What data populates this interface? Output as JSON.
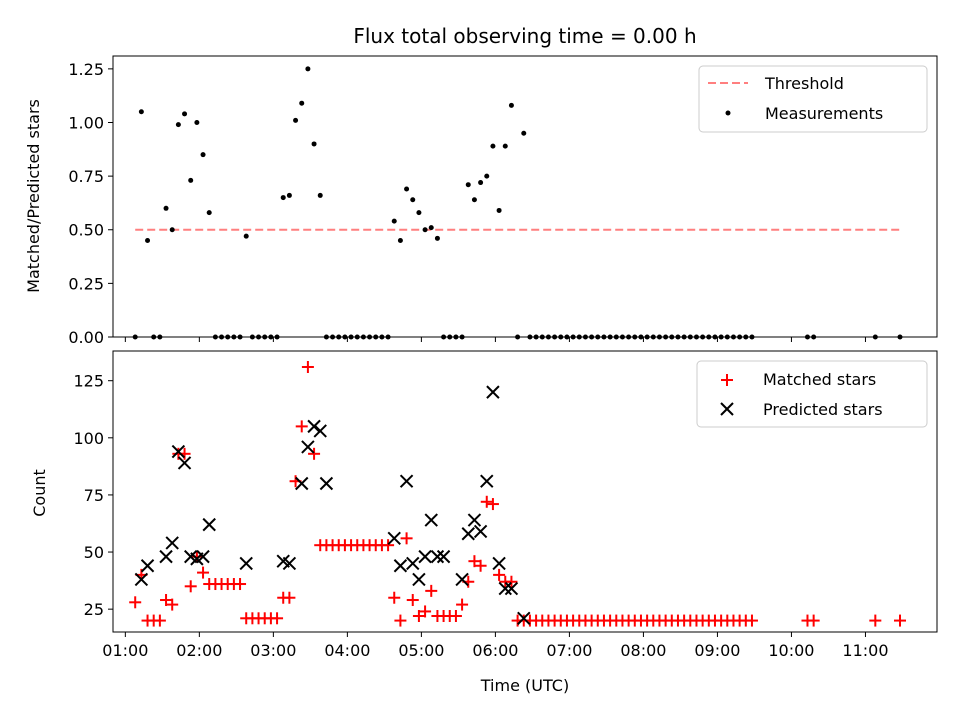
{
  "chart_data": [
    {
      "type": "scatter",
      "title": "Flux total observing time = 0.00 h",
      "xlabel": "",
      "ylabel": "Matched/Predicted stars",
      "xlim": [
        "00:50",
        "11:58"
      ],
      "ylim": [
        0,
        1.31
      ],
      "x_ticks": [
        "01:00",
        "02:00",
        "03:00",
        "04:00",
        "05:00",
        "06:00",
        "07:00",
        "08:00",
        "09:00",
        "10:00",
        "11:00"
      ],
      "y_ticks": [
        "0.00",
        "0.25",
        "0.50",
        "0.75",
        "1.00",
        "1.25"
      ],
      "legend_position": "top-right",
      "series": [
        {
          "name": "Threshold",
          "kind": "line",
          "style": "dashed",
          "color": "#ff7f7f",
          "x": [
            "01:08",
            "11:28"
          ],
          "y": [
            0.5,
            0.5
          ]
        },
        {
          "name": "Measurements",
          "kind": "scatter",
          "marker": "dot",
          "color": "#000000",
          "x": [
            "01:08",
            "01:13",
            "01:18",
            "01:23",
            "01:28",
            "01:33",
            "01:38",
            "01:43",
            "01:48",
            "01:53",
            "01:58",
            "02:03",
            "02:08",
            "02:13",
            "02:18",
            "02:23",
            "02:28",
            "02:33",
            "02:38",
            "02:43",
            "02:48",
            "02:53",
            "02:58",
            "03:03",
            "03:08",
            "03:13",
            "03:18",
            "03:23",
            "03:28",
            "03:33",
            "03:38",
            "03:43",
            "03:48",
            "03:53",
            "03:58",
            "04:03",
            "04:08",
            "04:13",
            "04:18",
            "04:23",
            "04:28",
            "04:33",
            "04:38",
            "04:43",
            "04:48",
            "04:53",
            "04:58",
            "05:03",
            "05:08",
            "05:13",
            "05:18",
            "05:23",
            "05:28",
            "05:33",
            "05:38",
            "05:43",
            "05:48",
            "05:53",
            "05:58",
            "06:03",
            "06:08",
            "06:13",
            "06:18",
            "06:23",
            "06:28",
            "06:33",
            "06:38",
            "06:43",
            "06:48",
            "06:53",
            "06:58",
            "07:03",
            "07:08",
            "07:13",
            "07:18",
            "07:23",
            "07:28",
            "07:33",
            "07:38",
            "07:43",
            "07:48",
            "07:53",
            "07:58",
            "08:03",
            "08:08",
            "08:13",
            "08:18",
            "08:23",
            "08:28",
            "08:33",
            "08:38",
            "08:43",
            "08:48",
            "08:53",
            "08:58",
            "09:03",
            "09:08",
            "09:13",
            "09:18",
            "09:23",
            "09:28",
            "10:13",
            "10:18",
            "11:08",
            "11:28"
          ],
          "y": [
            0,
            1.05,
            0.45,
            0,
            0,
            0.6,
            0.5,
            0.99,
            1.04,
            0.73,
            1.0,
            0.85,
            0.58,
            0,
            0,
            0,
            0,
            0,
            0.47,
            0,
            0,
            0,
            0,
            0,
            0.65,
            0.66,
            1.01,
            1.09,
            1.25,
            0.9,
            0.66,
            0,
            0,
            0,
            0,
            0,
            0,
            0,
            0,
            0,
            0,
            0,
            0.54,
            0.45,
            0.69,
            0.64,
            0.58,
            0.5,
            0.51,
            0.46,
            0,
            0,
            0,
            0,
            0.71,
            0.64,
            0.72,
            0.75,
            0.89,
            0.59,
            0.89,
            1.08,
            0,
            0.95,
            0,
            0,
            0,
            0,
            0,
            0,
            0,
            0,
            0,
            0,
            0,
            0,
            0,
            0,
            0,
            0,
            0,
            0,
            0,
            0,
            0,
            0,
            0,
            0,
            0,
            0,
            0,
            0,
            0,
            0,
            0,
            0,
            0,
            0,
            0,
            0,
            0,
            0,
            0,
            0,
            0
          ]
        }
      ]
    },
    {
      "type": "scatter",
      "title": "",
      "xlabel": "Time (UTC)",
      "ylabel": "Count",
      "xlim": [
        "00:50",
        "11:58"
      ],
      "ylim": [
        15,
        138
      ],
      "x_ticks": [
        "01:00",
        "02:00",
        "03:00",
        "04:00",
        "05:00",
        "06:00",
        "07:00",
        "08:00",
        "09:00",
        "10:00",
        "11:00"
      ],
      "y_ticks": [
        "25",
        "50",
        "75",
        "100",
        "125"
      ],
      "legend_position": "top-right",
      "series": [
        {
          "name": "Matched stars",
          "kind": "scatter",
          "marker": "plus",
          "color": "#ff0000",
          "x": [
            "01:08",
            "01:13",
            "01:18",
            "01:23",
            "01:28",
            "01:33",
            "01:38",
            "01:43",
            "01:48",
            "01:53",
            "01:58",
            "02:03",
            "02:08",
            "02:13",
            "02:18",
            "02:23",
            "02:28",
            "02:33",
            "02:38",
            "02:43",
            "02:48",
            "02:53",
            "02:58",
            "03:03",
            "03:08",
            "03:13",
            "03:18",
            "03:23",
            "03:28",
            "03:33",
            "03:38",
            "03:43",
            "03:48",
            "03:53",
            "03:58",
            "04:03",
            "04:08",
            "04:13",
            "04:18",
            "04:23",
            "04:28",
            "04:33",
            "04:38",
            "04:43",
            "04:48",
            "04:53",
            "04:58",
            "05:03",
            "05:08",
            "05:13",
            "05:18",
            "05:23",
            "05:28",
            "05:33",
            "05:38",
            "05:43",
            "05:48",
            "05:53",
            "05:58",
            "06:03",
            "06:08",
            "06:13",
            "06:18",
            "06:23",
            "06:28",
            "06:33",
            "06:38",
            "06:43",
            "06:48",
            "06:53",
            "06:58",
            "07:03",
            "07:08",
            "07:13",
            "07:18",
            "07:23",
            "07:28",
            "07:33",
            "07:38",
            "07:43",
            "07:48",
            "07:53",
            "07:58",
            "08:03",
            "08:08",
            "08:13",
            "08:18",
            "08:23",
            "08:28",
            "08:33",
            "08:38",
            "08:43",
            "08:48",
            "08:53",
            "08:58",
            "09:03",
            "09:08",
            "09:13",
            "09:18",
            "09:23",
            "09:28",
            "10:13",
            "10:18",
            "11:08",
            "11:28"
          ],
          "y": [
            28,
            40,
            20,
            20,
            20,
            29,
            27,
            93,
            93,
            35,
            48,
            41,
            36,
            36,
            36,
            36,
            36,
            36,
            21,
            21,
            21,
            21,
            21,
            21,
            30,
            30,
            81,
            105,
            131,
            93,
            53,
            53,
            53,
            53,
            53,
            53,
            53,
            53,
            53,
            53,
            53,
            53,
            30,
            20,
            56,
            29,
            22,
            24,
            33,
            22,
            22,
            22,
            22,
            27,
            37,
            46,
            44,
            72,
            71,
            40,
            37,
            37,
            20,
            20,
            20,
            20,
            20,
            20,
            20,
            20,
            20,
            20,
            20,
            20,
            20,
            20,
            20,
            20,
            20,
            20,
            20,
            20,
            20,
            20,
            20,
            20,
            20,
            20,
            20,
            20,
            20,
            20,
            20,
            20,
            20,
            20,
            20,
            20,
            20,
            20,
            20,
            20,
            20,
            20,
            20
          ]
        },
        {
          "name": "Predicted stars",
          "kind": "scatter",
          "marker": "x",
          "color": "#000000",
          "x": [
            "01:13",
            "01:18",
            "01:33",
            "01:38",
            "01:43",
            "01:48",
            "01:53",
            "01:58",
            "02:03",
            "02:08",
            "02:38",
            "03:08",
            "03:13",
            "03:23",
            "03:28",
            "03:33",
            "03:38",
            "03:43",
            "04:38",
            "04:43",
            "04:48",
            "04:53",
            "04:58",
            "05:03",
            "05:08",
            "05:13",
            "05:18",
            "05:33",
            "05:38",
            "05:43",
            "05:48",
            "05:53",
            "05:58",
            "06:03",
            "06:08",
            "06:13",
            "06:23"
          ],
          "y": [
            38,
            44,
            48,
            54,
            94,
            89,
            48,
            47,
            48,
            62,
            45,
            46,
            45,
            80,
            96,
            105,
            103,
            80,
            56,
            44,
            81,
            45,
            38,
            48,
            64,
            48,
            48,
            38,
            58,
            64,
            59,
            81,
            120,
            45,
            34,
            34,
            21
          ]
        }
      ]
    }
  ]
}
